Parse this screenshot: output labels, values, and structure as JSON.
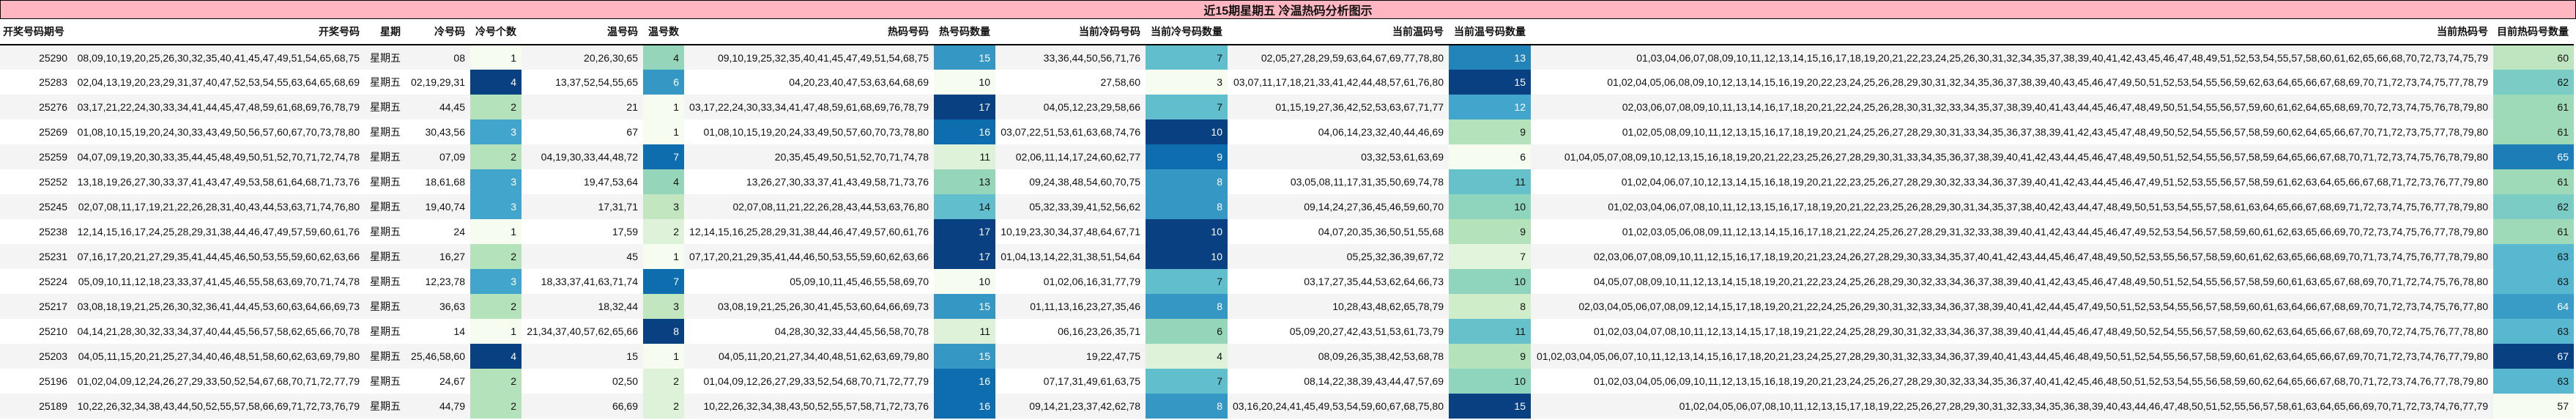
{
  "title": "近15期星期五 冷温热码分析图示",
  "columns": [
    "开奖号码期号",
    "开奖号码",
    "星期",
    "冷号码",
    "冷号个数",
    "温号码",
    "温号数",
    "热码号码",
    "热号码数量",
    "当前冷码号码",
    "当前冷号码数量",
    "当前温码号",
    "当前温号码数量",
    "当前热码号",
    "目前热码号数量"
  ],
  "heatmap_palette": [
    "#f7fcf0",
    "#e0f3db",
    "#ccebc5",
    "#a8ddb5",
    "#7bccc4",
    "#4eb3d3",
    "#2b8cbe",
    "#0868ac",
    "#084081"
  ],
  "rows": [
    {
      "issue": "25290",
      "numbers": "08,09,10,19,20,25,26,30,32,35,40,41,45,47,49,51,54,65,68,75",
      "weekday": "星期五",
      "cold": "08",
      "cold_count": 1,
      "warm": "20,26,30,65",
      "warm_count": 4,
      "hot": "09,10,19,25,32,35,40,41,45,47,49,51,54,68,75",
      "hot_count": 15,
      "cur_cold": "33,36,44,50,56,71,76",
      "cur_cold_count": 7,
      "cur_warm": "02,05,27,28,29,59,63,64,67,69,77,78,80",
      "cur_warm_count": 13,
      "cur_hot": "01,03,04,06,07,08,09,10,11,12,13,14,15,16,17,18,19,20,21,22,23,24,25,26,30,31,32,34,35,37,38,39,40,41,42,43,45,46,47,48,49,51,52,53,54,55,57,58,60,61,62,65,66,68,70,72,73,74,75,79",
      "cur_hot_count": 60
    },
    {
      "issue": "25283",
      "numbers": "02,04,13,19,20,23,29,31,37,40,47,52,53,54,55,63,64,65,68,69",
      "weekday": "星期五",
      "cold": "02,19,29,31",
      "cold_count": 4,
      "warm": "13,37,52,54,55,65",
      "warm_count": 6,
      "hot": "04,20,23,40,47,53,63,64,68,69",
      "hot_count": 10,
      "cur_cold": "27,58,60",
      "cur_cold_count": 3,
      "cur_warm": "03,07,11,17,18,21,33,41,42,44,48,57,61,76,80",
      "cur_warm_count": 15,
      "cur_hot": "01,02,04,05,06,08,09,10,12,13,14,15,16,19,20,22,23,24,25,26,28,29,30,31,32,34,35,36,37,38,39,40,43,45,46,47,49,50,51,52,53,54,55,56,59,62,63,64,65,66,67,68,69,70,71,72,73,74,75,77,78,79",
      "cur_hot_count": 62
    },
    {
      "issue": "25276",
      "numbers": "03,17,21,22,24,30,33,34,41,44,45,47,48,59,61,68,69,76,78,79",
      "weekday": "星期五",
      "cold": "44,45",
      "cold_count": 2,
      "warm": "21",
      "warm_count": 1,
      "hot": "03,17,22,24,30,33,34,41,47,48,59,61,68,69,76,78,79",
      "hot_count": 17,
      "cur_cold": "04,05,12,23,29,58,66",
      "cur_cold_count": 7,
      "cur_warm": "01,15,19,27,36,42,52,53,63,67,71,77",
      "cur_warm_count": 12,
      "cur_hot": "02,03,06,07,08,09,10,11,13,14,16,17,18,20,21,22,24,25,26,28,30,31,32,33,34,35,37,38,39,40,41,43,44,45,46,47,48,49,50,51,54,55,56,57,59,60,61,62,64,65,68,69,70,72,73,74,75,76,78,79,80",
      "cur_hot_count": 61
    },
    {
      "issue": "25269",
      "numbers": "01,08,10,15,19,20,24,30,33,43,49,50,56,57,60,67,70,73,78,80",
      "weekday": "星期五",
      "cold": "30,43,56",
      "cold_count": 3,
      "warm": "67",
      "warm_count": 1,
      "hot": "01,08,10,15,19,20,24,33,49,50,57,60,70,73,78,80",
      "hot_count": 16,
      "cur_cold": "03,07,22,51,53,61,63,68,74,76",
      "cur_cold_count": 10,
      "cur_warm": "04,06,14,23,32,40,44,46,69",
      "cur_warm_count": 9,
      "cur_hot": "01,02,05,08,09,10,11,12,13,15,16,17,18,19,20,21,24,25,26,27,28,29,30,31,33,34,35,36,37,38,39,41,42,43,45,47,48,49,50,52,54,55,56,57,58,59,60,62,64,65,66,67,70,71,72,73,75,77,78,79,80",
      "cur_hot_count": 61
    },
    {
      "issue": "25259",
      "numbers": "04,07,09,19,20,30,33,35,44,45,48,49,50,51,52,70,71,72,74,78",
      "weekday": "星期五",
      "cold": "07,09",
      "cold_count": 2,
      "warm": "04,19,30,33,44,48,72",
      "warm_count": 7,
      "hot": "20,35,45,49,50,51,52,70,71,74,78",
      "hot_count": 11,
      "cur_cold": "02,06,11,14,17,24,60,62,77",
      "cur_cold_count": 9,
      "cur_warm": "03,32,53,61,63,69",
      "cur_warm_count": 6,
      "cur_hot": "01,04,05,07,08,09,10,12,13,15,16,18,19,20,21,22,23,25,26,27,28,29,30,31,33,34,35,36,37,38,39,40,41,42,43,44,45,46,47,48,49,50,51,52,54,55,56,57,58,59,64,65,66,67,68,70,71,72,73,74,75,76,78,79,80",
      "cur_hot_count": 65
    },
    {
      "issue": "25252",
      "numbers": "13,18,19,26,27,30,33,37,41,43,47,49,53,58,61,64,68,71,73,76",
      "weekday": "星期五",
      "cold": "18,61,68",
      "cold_count": 3,
      "warm": "19,47,53,64",
      "warm_count": 4,
      "hot": "13,26,27,30,33,37,41,43,49,58,71,73,76",
      "hot_count": 13,
      "cur_cold": "09,24,38,48,54,60,70,75",
      "cur_cold_count": 8,
      "cur_warm": "03,05,08,11,17,31,35,50,69,74,78",
      "cur_warm_count": 11,
      "cur_hot": "01,02,04,06,07,10,12,13,14,15,16,18,19,20,21,22,23,25,26,27,28,29,30,32,33,34,36,37,39,40,41,42,43,44,45,46,47,49,51,52,53,55,56,57,58,59,61,62,63,64,65,66,67,68,71,72,73,76,77,79,80",
      "cur_hot_count": 61
    },
    {
      "issue": "25245",
      "numbers": "02,07,08,11,17,19,21,22,26,28,31,40,43,44,53,63,71,74,76,80",
      "weekday": "星期五",
      "cold": "19,40,74",
      "cold_count": 3,
      "warm": "17,31,71",
      "warm_count": 3,
      "hot": "02,07,08,11,21,22,26,28,43,44,53,63,76,80",
      "hot_count": 14,
      "cur_cold": "05,32,33,39,41,52,56,62",
      "cur_cold_count": 8,
      "cur_warm": "09,14,24,27,36,45,46,59,60,70",
      "cur_warm_count": 10,
      "cur_hot": "01,02,03,04,06,07,08,10,11,12,13,15,16,17,18,19,20,21,22,23,25,26,28,29,30,31,34,35,37,38,40,42,43,44,47,48,49,50,51,53,54,55,57,58,61,63,64,65,66,67,68,69,71,72,73,74,75,76,77,78,79,80",
      "cur_hot_count": 62
    },
    {
      "issue": "25238",
      "numbers": "12,14,15,16,17,24,25,28,29,31,38,44,46,47,49,57,59,60,61,76",
      "weekday": "星期五",
      "cold": "24",
      "cold_count": 1,
      "warm": "17,59",
      "warm_count": 2,
      "hot": "12,14,15,16,25,28,29,31,38,44,46,47,49,57,60,61,76",
      "hot_count": 17,
      "cur_cold": "10,19,23,30,34,37,48,64,67,71",
      "cur_cold_count": 10,
      "cur_warm": "04,07,20,35,36,50,51,55,68",
      "cur_warm_count": 9,
      "cur_hot": "01,02,03,05,06,08,09,11,12,13,14,15,16,17,18,21,22,24,25,26,27,28,29,31,32,33,38,39,40,41,42,43,44,45,46,47,49,52,53,54,56,57,58,59,60,61,62,63,65,66,69,70,72,73,74,75,76,77,78,79,80",
      "cur_hot_count": 61
    },
    {
      "issue": "25231",
      "numbers": "07,16,17,20,21,27,29,35,41,44,45,46,50,53,55,59,60,62,63,66",
      "weekday": "星期五",
      "cold": "16,27",
      "cold_count": 2,
      "warm": "45",
      "warm_count": 1,
      "hot": "07,17,20,21,29,35,41,44,46,50,53,55,59,60,62,63,66",
      "hot_count": 17,
      "cur_cold": "01,04,13,14,22,31,38,51,54,64",
      "cur_cold_count": 10,
      "cur_warm": "05,25,32,36,39,67,72",
      "cur_warm_count": 7,
      "cur_hot": "02,03,06,07,08,09,10,11,12,15,16,17,18,19,20,21,23,24,26,27,28,29,30,33,34,35,37,40,41,42,43,44,45,46,47,48,49,50,52,53,55,56,57,58,59,60,61,62,63,65,66,68,69,70,71,73,74,75,76,77,78,79,80",
      "cur_hot_count": 63
    },
    {
      "issue": "25224",
      "numbers": "05,09,10,11,12,18,23,33,37,41,45,46,55,58,63,69,70,71,74,78",
      "weekday": "星期五",
      "cold": "12,23,78",
      "cold_count": 3,
      "warm": "18,33,37,41,63,71,74",
      "warm_count": 7,
      "hot": "05,09,10,11,45,46,55,58,69,70",
      "hot_count": 10,
      "cur_cold": "01,02,06,16,31,77,79",
      "cur_cold_count": 7,
      "cur_warm": "03,17,27,35,44,53,62,64,66,73",
      "cur_warm_count": 10,
      "cur_hot": "04,05,07,08,09,10,11,12,13,14,15,18,19,20,21,22,23,24,25,26,28,29,30,32,33,34,36,37,38,39,40,41,42,43,45,46,47,48,49,50,51,52,54,55,56,57,58,59,60,61,63,65,67,68,69,70,71,72,74,75,76,78,80",
      "cur_hot_count": 63
    },
    {
      "issue": "25217",
      "numbers": "03,08,18,19,21,25,26,30,32,36,41,44,45,53,60,63,64,66,69,73",
      "weekday": "星期五",
      "cold": "36,63",
      "cold_count": 2,
      "warm": "18,32,44",
      "warm_count": 3,
      "hot": "03,08,19,21,25,26,30,41,45,53,60,64,66,69,73",
      "hot_count": 15,
      "cur_cold": "01,11,13,16,23,27,35,46",
      "cur_cold_count": 8,
      "cur_warm": "10,28,43,48,62,65,78,79",
      "cur_warm_count": 8,
      "cur_hot": "02,03,04,05,06,07,08,09,12,14,15,17,18,19,20,21,22,24,25,26,29,30,31,32,33,34,36,37,38,39,40,41,42,44,45,47,49,50,51,52,53,54,55,56,57,58,59,60,61,63,64,66,67,68,69,70,71,72,73,74,75,76,77,80",
      "cur_hot_count": 64
    },
    {
      "issue": "25210",
      "numbers": "04,14,21,28,30,32,33,34,37,40,44,45,56,57,58,62,65,66,70,78",
      "weekday": "星期五",
      "cold": "14",
      "cold_count": 1,
      "warm": "21,34,37,40,57,62,65,66",
      "warm_count": 8,
      "hot": "04,28,30,32,33,44,45,56,58,70,78",
      "hot_count": 11,
      "cur_cold": "06,16,23,26,35,71",
      "cur_cold_count": 6,
      "cur_warm": "05,09,20,27,42,43,51,53,61,73,79",
      "cur_warm_count": 11,
      "cur_hot": "01,02,03,04,07,08,10,11,12,13,14,15,17,18,19,21,22,24,25,28,29,30,31,32,33,34,36,37,38,39,40,41,44,45,46,47,48,49,50,52,54,55,56,57,58,59,60,62,63,64,65,66,67,68,69,70,72,74,75,76,77,78,80",
      "cur_hot_count": 63
    },
    {
      "issue": "25203",
      "numbers": "04,05,11,15,20,21,25,27,34,40,46,48,51,58,60,62,63,69,79,80",
      "weekday": "星期五",
      "cold": "25,46,58,60",
      "cold_count": 4,
      "warm": "15",
      "warm_count": 1,
      "hot": "04,05,11,20,21,27,34,40,48,51,62,63,69,79,80",
      "hot_count": 15,
      "cur_cold": "19,22,47,75",
      "cur_cold_count": 4,
      "cur_warm": "08,09,26,35,38,42,53,68,78",
      "cur_warm_count": 9,
      "cur_hot": "01,02,03,04,05,06,07,10,11,12,13,14,15,16,17,18,20,21,23,24,25,27,28,29,30,31,32,33,34,36,37,39,40,41,43,44,45,46,48,49,50,51,52,54,55,56,57,58,59,60,61,62,63,64,65,66,67,69,70,71,72,73,74,76,77,79,80",
      "cur_hot_count": 67
    },
    {
      "issue": "25196",
      "numbers": "01,02,04,09,12,24,26,27,29,33,50,52,54,67,68,70,71,72,77,79",
      "weekday": "星期五",
      "cold": "24,67",
      "cold_count": 2,
      "warm": "02,50",
      "warm_count": 2,
      "hot": "01,04,09,12,26,27,29,33,52,54,68,70,71,72,77,79",
      "hot_count": 16,
      "cur_cold": "07,17,31,49,61,63,75",
      "cur_cold_count": 7,
      "cur_warm": "08,14,22,38,39,43,44,47,57,69",
      "cur_warm_count": 10,
      "cur_hot": "01,02,03,04,05,06,09,10,11,12,13,15,16,18,19,20,21,23,24,25,26,27,28,29,30,32,33,34,35,36,37,40,41,42,45,46,48,50,51,52,53,54,55,56,58,59,60,62,64,65,66,67,68,70,71,72,73,74,76,77,78,79,80",
      "cur_hot_count": 63
    },
    {
      "issue": "25189",
      "numbers": "10,22,26,32,34,38,43,44,50,52,55,57,58,66,69,71,72,73,76,79",
      "weekday": "星期五",
      "cold": "44,79",
      "cold_count": 2,
      "warm": "66,69",
      "warm_count": 2,
      "hot": "10,22,26,32,34,38,43,50,52,55,57,58,71,72,73,76",
      "hot_count": 16,
      "cur_cold": "09,14,21,23,37,42,62,78",
      "cur_cold_count": 8,
      "cur_warm": "03,16,20,24,41,45,49,53,54,59,60,67,68,75,80",
      "cur_warm_count": 15,
      "cur_hot": "01,02,04,05,06,07,08,10,11,12,13,15,17,18,19,22,25,26,27,28,29,30,31,32,33,34,35,36,38,39,40,43,44,46,47,48,50,51,52,55,56,57,58,61,63,64,65,66,69,70,71,72,73,74,76,77,79",
      "cur_hot_count": 57
    }
  ]
}
